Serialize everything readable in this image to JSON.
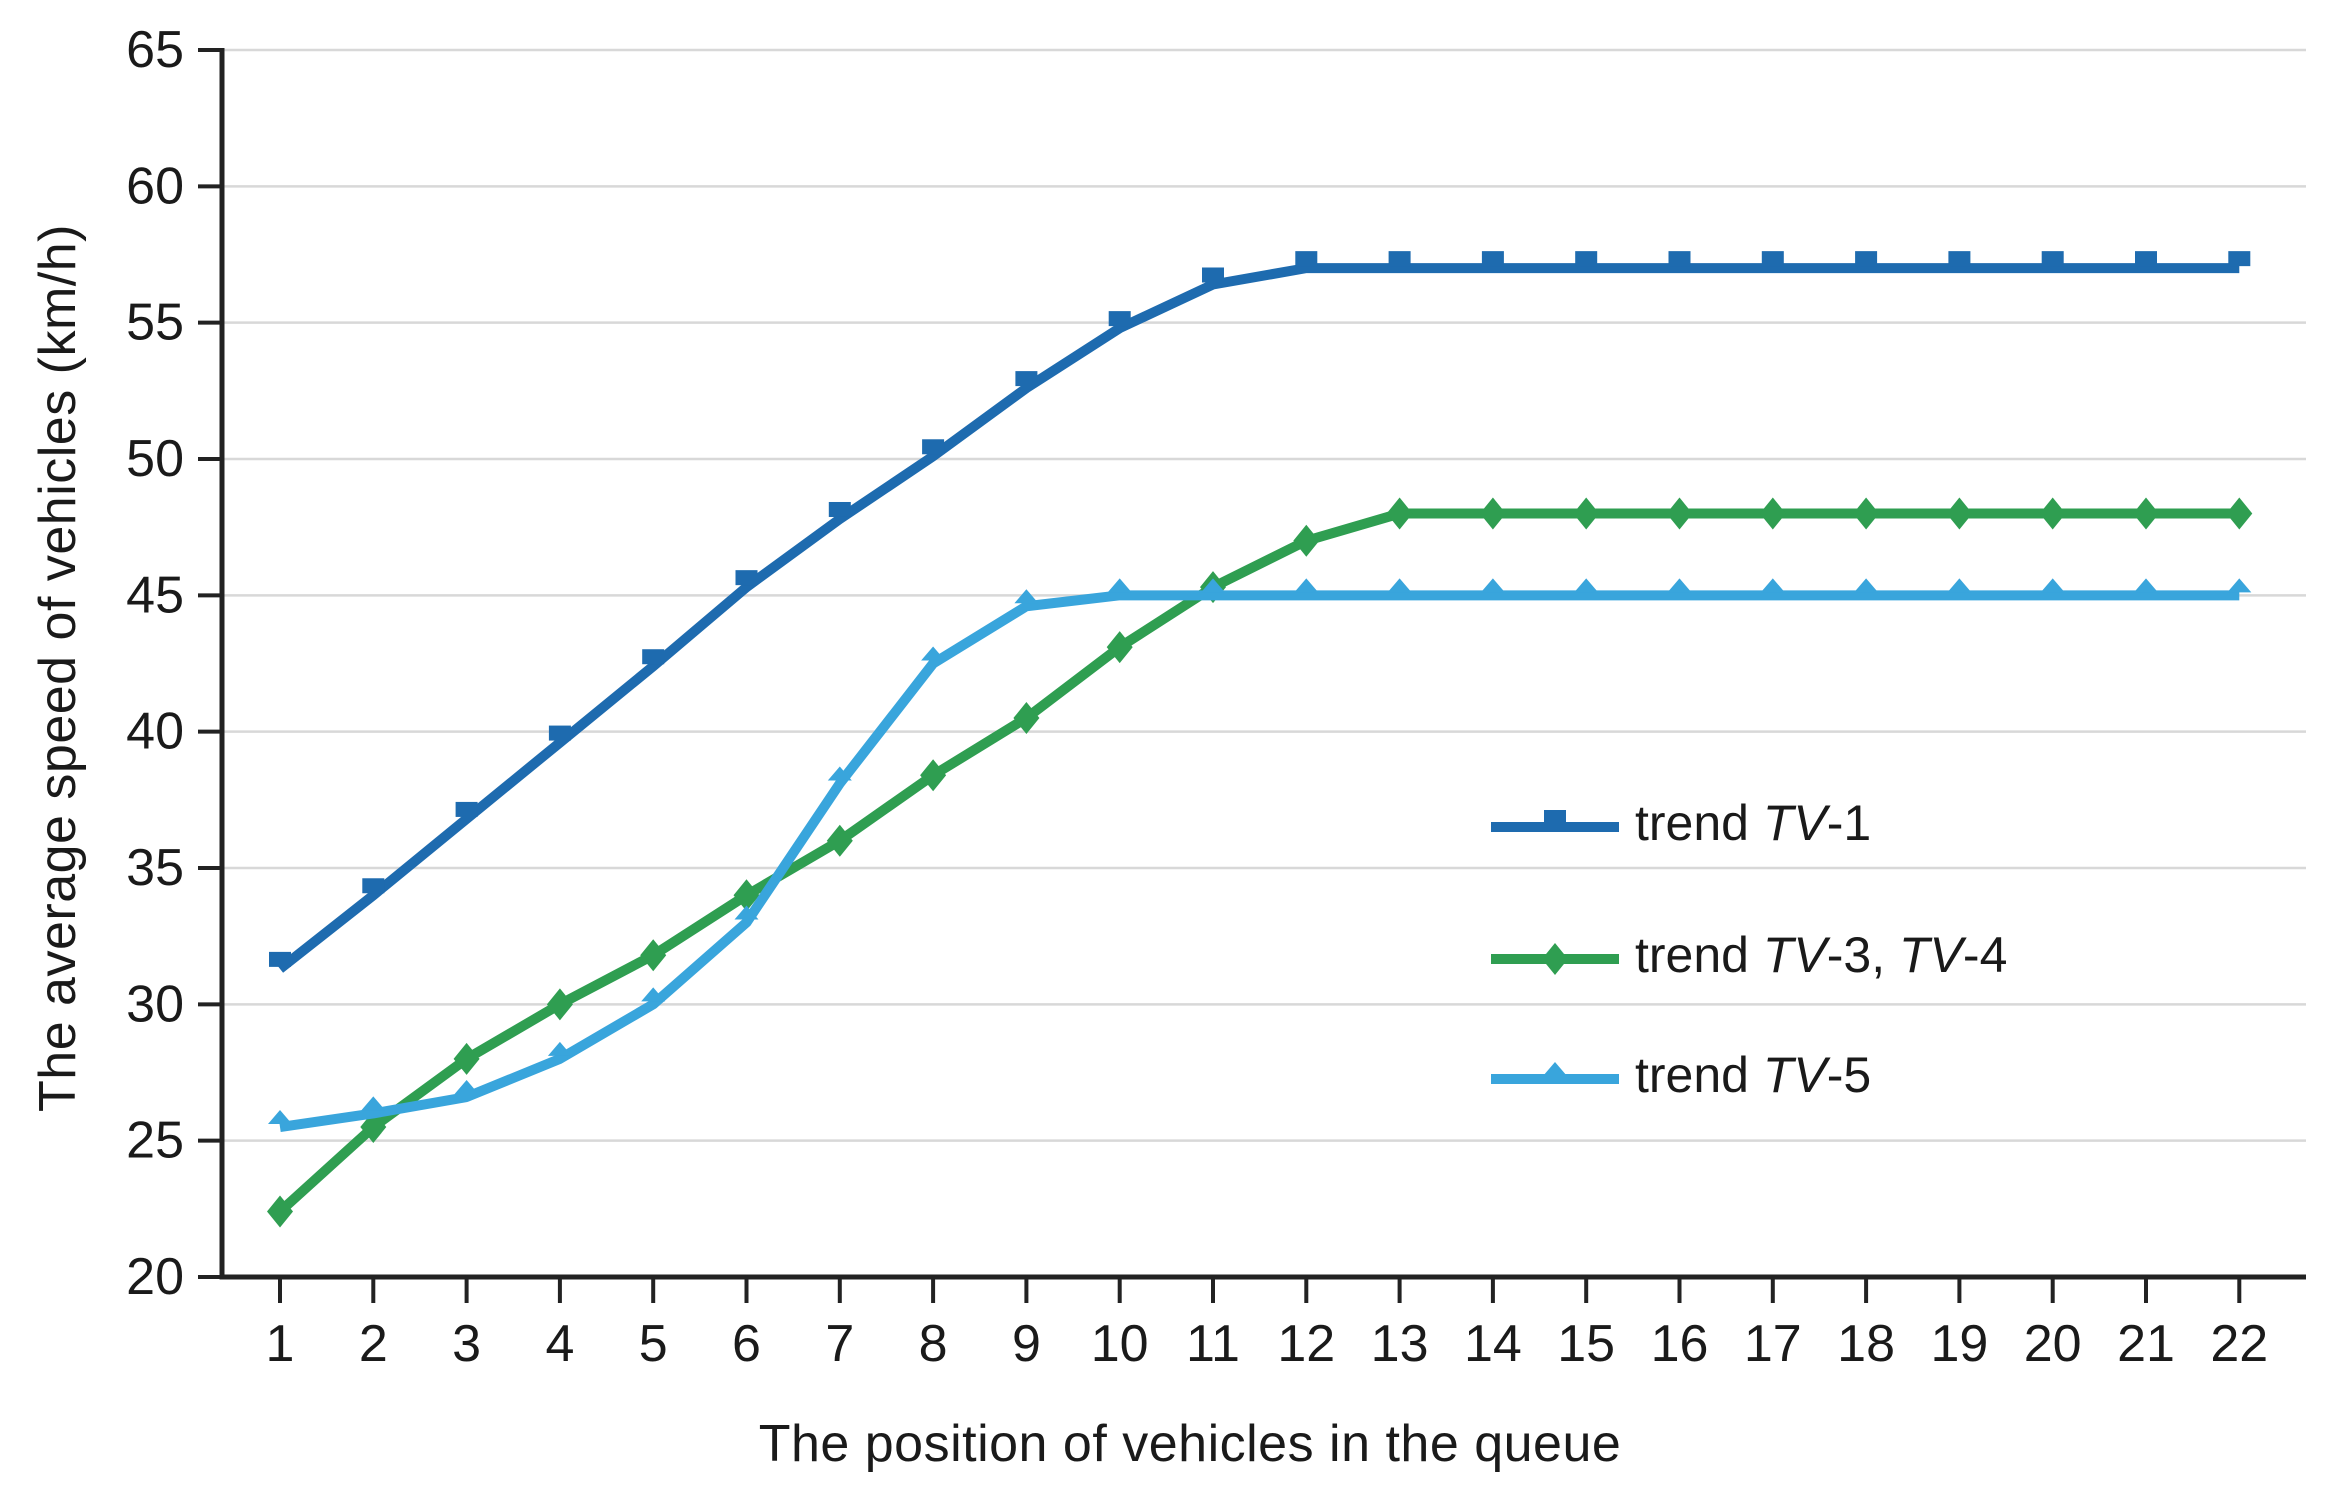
{
  "chart_data": {
    "type": "line",
    "title": "",
    "xlabel": "The position of vehicles in the queue",
    "ylabel": "The average speed of vehicles (km/h)",
    "categories": [
      1,
      2,
      3,
      4,
      5,
      6,
      7,
      8,
      9,
      10,
      11,
      12,
      13,
      14,
      15,
      16,
      17,
      18,
      19,
      20,
      21,
      22
    ],
    "ylim": [
      20,
      65
    ],
    "y_tick_step": 5,
    "y_tick_labels": [
      "20",
      "25",
      "30",
      "35",
      "40",
      "45",
      "50",
      "55",
      "60",
      "65"
    ],
    "grid": "horizontal",
    "legend_position": "middle-right",
    "series": [
      {
        "name": "trend TV-1",
        "name_parts": [
          {
            "text": "trend ",
            "italic": false
          },
          {
            "text": "TV",
            "italic": true
          },
          {
            "text": "-1",
            "italic": false
          }
        ],
        "color": "#1E6BAF",
        "marker": "square",
        "values": [
          31.3,
          34,
          36.8,
          39.6,
          42.4,
          45.3,
          47.8,
          50.1,
          52.6,
          54.8,
          56.4,
          57,
          57,
          57,
          57,
          57,
          57,
          57,
          57,
          57,
          57,
          57
        ]
      },
      {
        "name": "trend TV-3, TV-4",
        "name_parts": [
          {
            "text": "trend ",
            "italic": false
          },
          {
            "text": "TV",
            "italic": true
          },
          {
            "text": "-3, ",
            "italic": false
          },
          {
            "text": "TV",
            "italic": true
          },
          {
            "text": "-4",
            "italic": false
          }
        ],
        "color": "#2F9E51",
        "marker": "diamond",
        "values": [
          22.4,
          25.5,
          28,
          30,
          31.8,
          34,
          36,
          38.4,
          40.5,
          43.1,
          45.3,
          47,
          48,
          48,
          48,
          48,
          48,
          48,
          48,
          48,
          48,
          48
        ]
      },
      {
        "name": "trend TV-5",
        "name_parts": [
          {
            "text": "trend ",
            "italic": false
          },
          {
            "text": "TV",
            "italic": true
          },
          {
            "text": "-5",
            "italic": false
          }
        ],
        "color": "#39A5DC",
        "marker": "triangle-up",
        "values": [
          25.5,
          26,
          26.6,
          28,
          30,
          33,
          38.1,
          42.5,
          44.6,
          45,
          45,
          45,
          45,
          45,
          45,
          45,
          45,
          45,
          45,
          45,
          45,
          45
        ]
      }
    ],
    "colors": {
      "grid": "#d8d8d8",
      "axis": "#222222",
      "text": "#1a1a1a",
      "background": "#ffffff"
    }
  }
}
